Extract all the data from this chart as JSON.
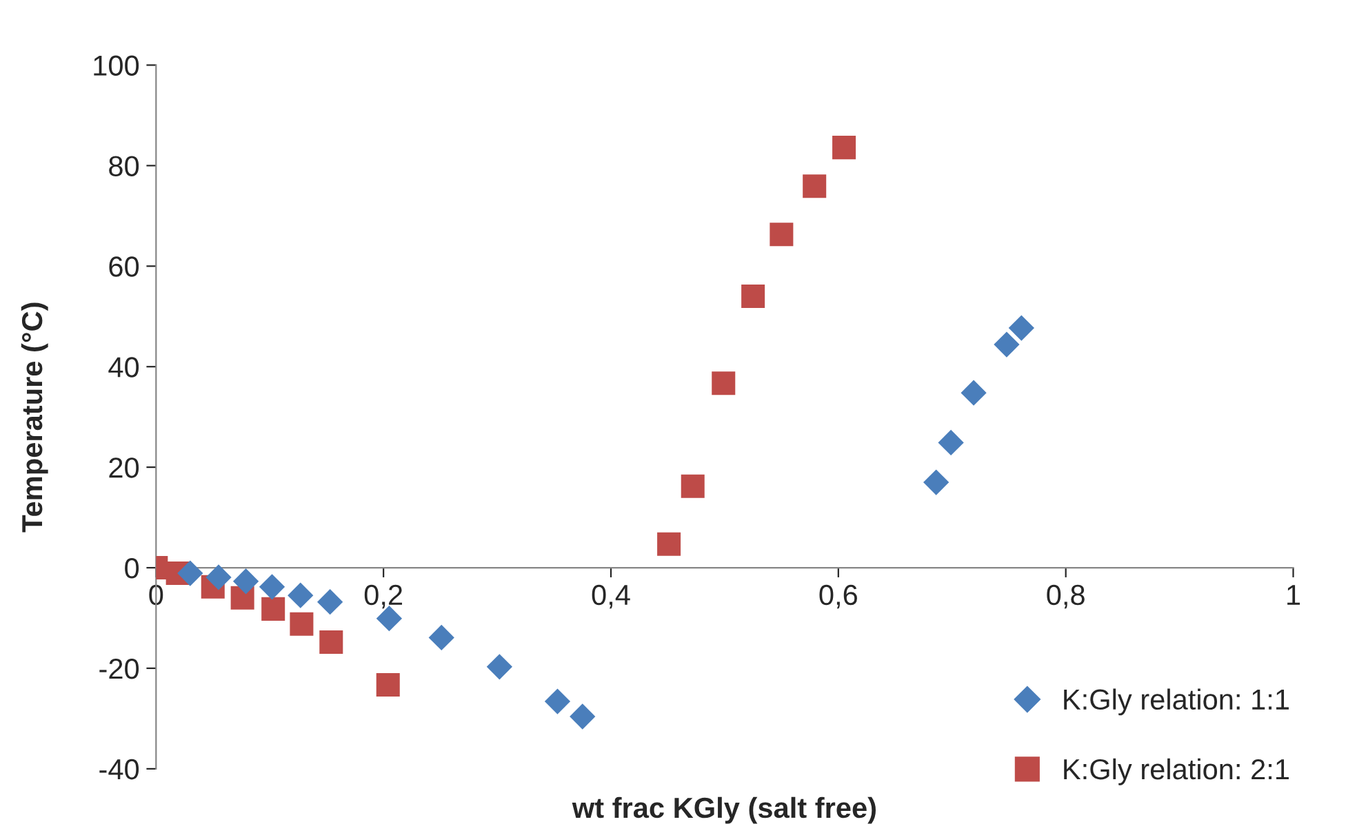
{
  "chart_data": {
    "type": "scatter",
    "xlabel": "wt frac KGly (salt free)",
    "ylabel": "Temperature (°C)",
    "xlim": [
      0,
      1
    ],
    "xticks": [
      {
        "value": 0,
        "label": "0"
      },
      {
        "value": 0.2,
        "label": "0,2"
      },
      {
        "value": 0.4,
        "label": "0,4"
      },
      {
        "value": 0.6,
        "label": "0,6"
      },
      {
        "value": 0.8,
        "label": "0,8"
      },
      {
        "value": 1,
        "label": "1"
      }
    ],
    "ylim": [
      -40,
      100
    ],
    "yticks": [
      -40,
      -20,
      0,
      20,
      40,
      60,
      80,
      100
    ],
    "grid": false,
    "legend": "bottom right",
    "series": [
      {
        "name": "K:Gly relation: 1:1",
        "color": "#4a7ebb",
        "marker": "diamond",
        "x": [
          0.03,
          0.055,
          0.079,
          0.102,
          0.127,
          0.153,
          0.205,
          0.251,
          0.302,
          0.353,
          0.375,
          0.686,
          0.699,
          0.719,
          0.748,
          0.761
        ],
        "values": [
          -1.1,
          -1.9,
          -2.7,
          -3.8,
          -5.5,
          -6.8,
          -10.1,
          -13.9,
          -19.7,
          -26.6,
          -29.6,
          17.0,
          24.9,
          34.8,
          44.4,
          47.7
        ]
      },
      {
        "name": "K:Gly relation: 2:1",
        "color": "#be4b48",
        "marker": "square",
        "x": [
          0,
          0.019,
          0.05,
          0.076,
          0.103,
          0.128,
          0.154,
          0.204,
          0.451,
          0.472,
          0.499,
          0.525,
          0.55,
          0.579,
          0.605
        ],
        "values": [
          0,
          -1.1,
          -3.8,
          -6.0,
          -8.2,
          -11.2,
          -14.8,
          -23.3,
          4.7,
          16.2,
          36.7,
          54.0,
          66.3,
          75.9,
          83.6
        ]
      }
    ]
  }
}
